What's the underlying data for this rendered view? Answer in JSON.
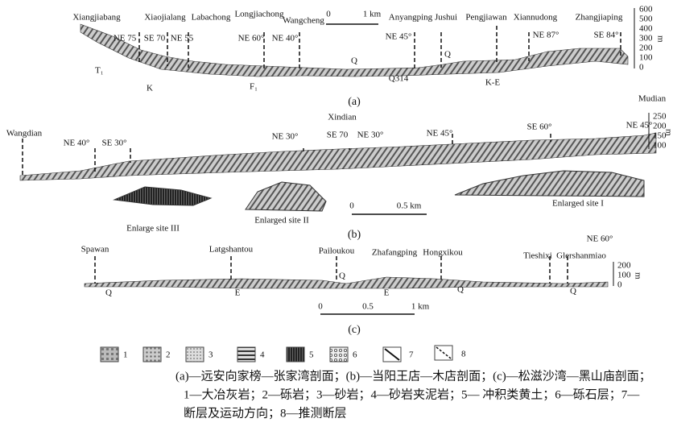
{
  "section_a": {
    "places": [
      "Xiangjiabang",
      "Xiaojialang",
      "Labachong",
      "Longjiachong",
      "Wangcheng",
      "Anyangping",
      "Jushui",
      "Pengjiawan",
      "Xiannudong",
      "Zhangjiaping"
    ],
    "faults": [
      "NE 75",
      "SE 70",
      "NE 55",
      "NE 60°",
      "NE 40°",
      "NE 45°",
      "NE 87°",
      "SE 84°"
    ],
    "strata": [
      "T₁",
      "K",
      "F₁",
      "Q",
      "Q314",
      "Q",
      "K-E"
    ],
    "scale": [
      "0",
      "1 km"
    ],
    "axis": [
      600,
      500,
      400,
      300,
      200,
      100,
      0
    ],
    "axis_unit": "m",
    "label": "(a)"
  },
  "section_b": {
    "places": [
      "Wangdian",
      "Xindian",
      "Mudian"
    ],
    "faults": [
      "NE 40°",
      "SE 30°",
      "NE 30°",
      "SE 70",
      "NE 30°",
      "NE 45°",
      "SE 60°",
      "NE 45°"
    ],
    "sites": [
      "Enlarge site III",
      "Enlarged site II",
      "Enlarged site I"
    ],
    "scale": [
      "0",
      "0.5 km"
    ],
    "axis": [
      250,
      200,
      150,
      100
    ],
    "axis_unit": "m",
    "label": "(b)"
  },
  "section_c": {
    "places": [
      "Spawan",
      "Latgshantou",
      "Pailoukou",
      "Zhafangping",
      "Hongxikou",
      "Tieshixi",
      "Glershanmiao"
    ],
    "faults": [
      "NE 60°"
    ],
    "strata": [
      "Q",
      "E",
      "Q",
      "E",
      "Q",
      "Q"
    ],
    "scale": [
      "0",
      "0.5",
      "1 km"
    ],
    "axis": [
      200,
      100,
      0
    ],
    "axis_unit": "m",
    "label": "(c)"
  },
  "legend": [
    "1",
    "2",
    "3",
    "4",
    "5",
    "6",
    "7",
    "8"
  ],
  "caption": [
    "(a)—远安向家榜—张家湾剖面；(b)—当阳王店—木店剖面；(c)—松滋沙湾—黑山庙剖面；",
    "1—大冶灰岩；2—砾岩；3—砂岩；4—砂岩夹泥岩；5— 冲积类黄土；6—砾石层；7—",
    "断层及运动方向；8—推测断层"
  ]
}
